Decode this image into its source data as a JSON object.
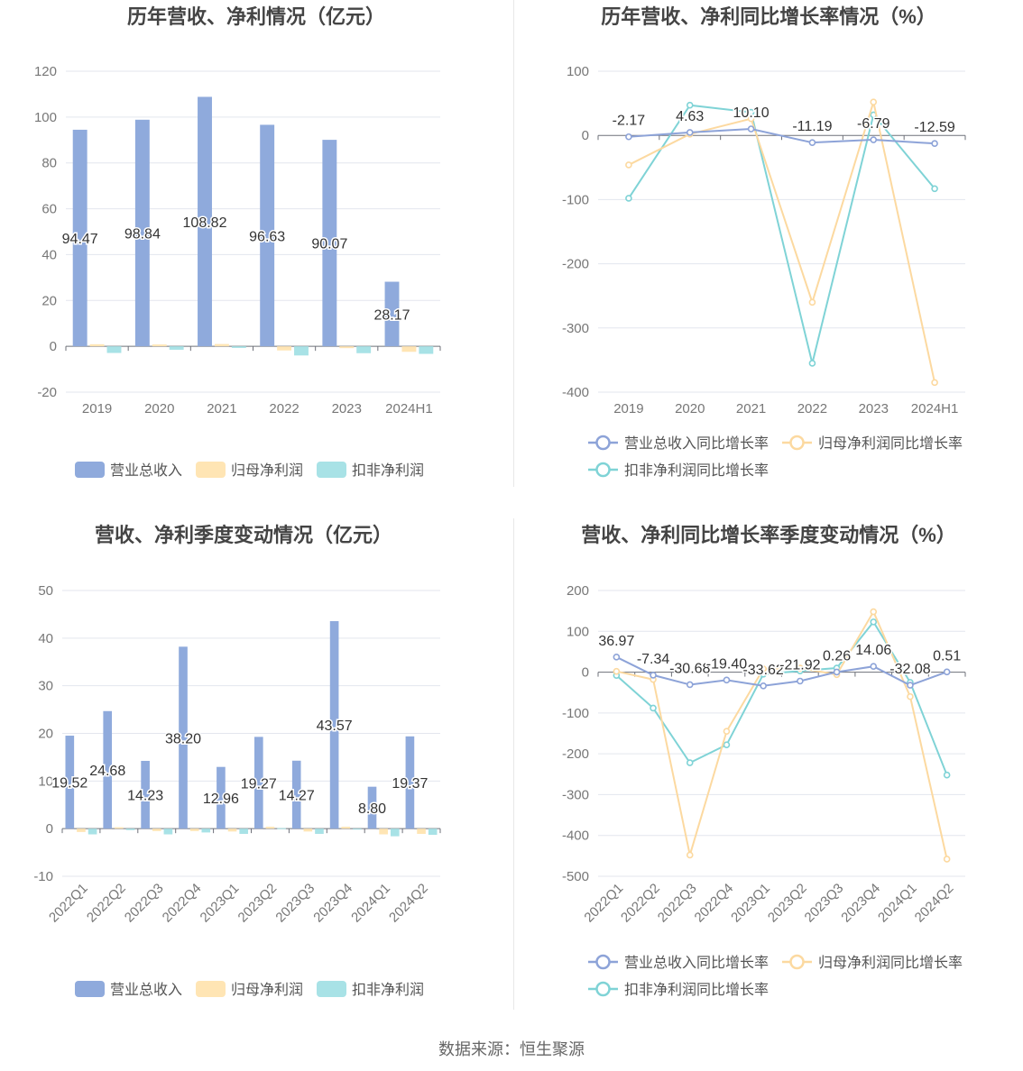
{
  "colors": {
    "revenue": "#8faadc",
    "net_profit": "#ffe5b4",
    "deducted_profit": "#a8e2e6",
    "revenue_line": "#8da3d8",
    "net_line": "#fcd9a0",
    "deducted_line": "#7fd3d6",
    "grid": "#e3e6ee",
    "axis_text": "#777777",
    "title": "#444444",
    "label": "#333333"
  },
  "source_text": "数据来源：恒生聚源",
  "chart_data": [
    {
      "type": "bar",
      "title": "历年营收、净利情况（亿元）",
      "categories": [
        "2019",
        "2020",
        "2021",
        "2022",
        "2023",
        "2024H1"
      ],
      "ylim": [
        -20,
        120
      ],
      "yticks": [
        -20,
        0,
        20,
        40,
        60,
        80,
        100,
        120
      ],
      "grid": true,
      "legend_position": "bottom",
      "series": [
        {
          "name": "营业总收入",
          "values": [
            94.47,
            98.84,
            108.82,
            96.63,
            90.07,
            28.17
          ],
          "labels": [
            "94.47",
            "98.84",
            "108.82",
            "96.63",
            "90.07",
            "28.17"
          ]
        },
        {
          "name": "归母净利润",
          "values": [
            0.9,
            0.8,
            1.0,
            -1.8,
            -0.8,
            -2.4
          ],
          "labels": []
        },
        {
          "name": "扣非净利润",
          "values": [
            -2.9,
            -1.5,
            -0.7,
            -4.0,
            -3.0,
            -3.3
          ],
          "labels": []
        }
      ]
    },
    {
      "type": "line",
      "title": "历年营收、净利同比增长率情况（%）",
      "categories": [
        "2019",
        "2020",
        "2021",
        "2022",
        "2023",
        "2024H1"
      ],
      "ylim": [
        -400,
        100
      ],
      "yticks": [
        -400,
        -300,
        -200,
        -100,
        0,
        100
      ],
      "grid": true,
      "legend_position": "bottom",
      "series": [
        {
          "name": "营业总收入同比增长率",
          "values": [
            -2.17,
            4.63,
            10.1,
            -11.19,
            -6.79,
            -12.59
          ],
          "labels": [
            "-2.17",
            "4.63",
            "10.10",
            "-11.19",
            "-6.79",
            "-12.59"
          ]
        },
        {
          "name": "归母净利润同比增长率",
          "values": [
            -46,
            2,
            26,
            -260,
            52,
            -385
          ],
          "labels": []
        },
        {
          "name": "扣非净利润同比增长率",
          "values": [
            -98,
            47,
            36,
            -355,
            32,
            -83
          ],
          "labels": []
        }
      ]
    },
    {
      "type": "bar",
      "title": "营收、净利季度变动情况（亿元）",
      "categories": [
        "2022Q1",
        "2022Q2",
        "2022Q3",
        "2022Q4",
        "2023Q1",
        "2023Q2",
        "2023Q3",
        "2023Q4",
        "2024Q1",
        "2024Q2"
      ],
      "ylim": [
        -10,
        50
      ],
      "yticks": [
        -10,
        0,
        10,
        20,
        30,
        40,
        50
      ],
      "grid": true,
      "legend_position": "bottom",
      "series": [
        {
          "name": "营业总收入",
          "values": [
            19.52,
            24.68,
            14.23,
            38.2,
            12.96,
            19.27,
            14.27,
            43.57,
            8.8,
            19.37
          ],
          "labels": [
            "19.52",
            "24.68",
            "14.23",
            "38.20",
            "12.96",
            "19.27",
            "14.27",
            "43.57",
            "8.80",
            "19.37"
          ]
        },
        {
          "name": "归母净利润",
          "values": [
            -0.7,
            0.3,
            -0.5,
            -0.5,
            -0.6,
            0.4,
            -0.6,
            0.4,
            -1.2,
            -1.1
          ],
          "labels": []
        },
        {
          "name": "扣非净利润",
          "values": [
            -1.2,
            -0.3,
            -1.2,
            -0.8,
            -1.1,
            0.1,
            -1.1,
            -0.2,
            -1.6,
            -1.3
          ],
          "labels": []
        }
      ]
    },
    {
      "type": "line",
      "title": "营收、净利同比增长率季度变动情况（%）",
      "categories": [
        "2022Q1",
        "2022Q2",
        "2022Q3",
        "2022Q4",
        "2023Q1",
        "2023Q2",
        "2023Q3",
        "2023Q4",
        "2024Q1",
        "2024Q2"
      ],
      "ylim": [
        -500,
        200
      ],
      "yticks": [
        -500,
        -400,
        -300,
        -200,
        -100,
        0,
        100,
        200
      ],
      "grid": true,
      "legend_position": "bottom",
      "series": [
        {
          "name": "营业总收入同比增长率",
          "values": [
            36.97,
            -7.34,
            -30.68,
            -19.4,
            -33.62,
            -21.92,
            0.26,
            14.06,
            -32.08,
            0.51
          ],
          "labels": [
            "36.97",
            "-7.34",
            "-30.68",
            "-19.40",
            "-33.62",
            "-21.92",
            "0.26",
            "14.06",
            "-32.08",
            "0.51"
          ]
        },
        {
          "name": "归母净利润同比增长率",
          "values": [
            2,
            -18,
            -448,
            -145,
            8,
            10,
            -6,
            148,
            -60,
            -458
          ],
          "labels": []
        },
        {
          "name": "扣非净利润同比增长率",
          "values": [
            -8,
            -88,
            -222,
            -178,
            -5,
            3,
            10,
            123,
            -25,
            -252
          ],
          "labels": []
        }
      ]
    }
  ]
}
